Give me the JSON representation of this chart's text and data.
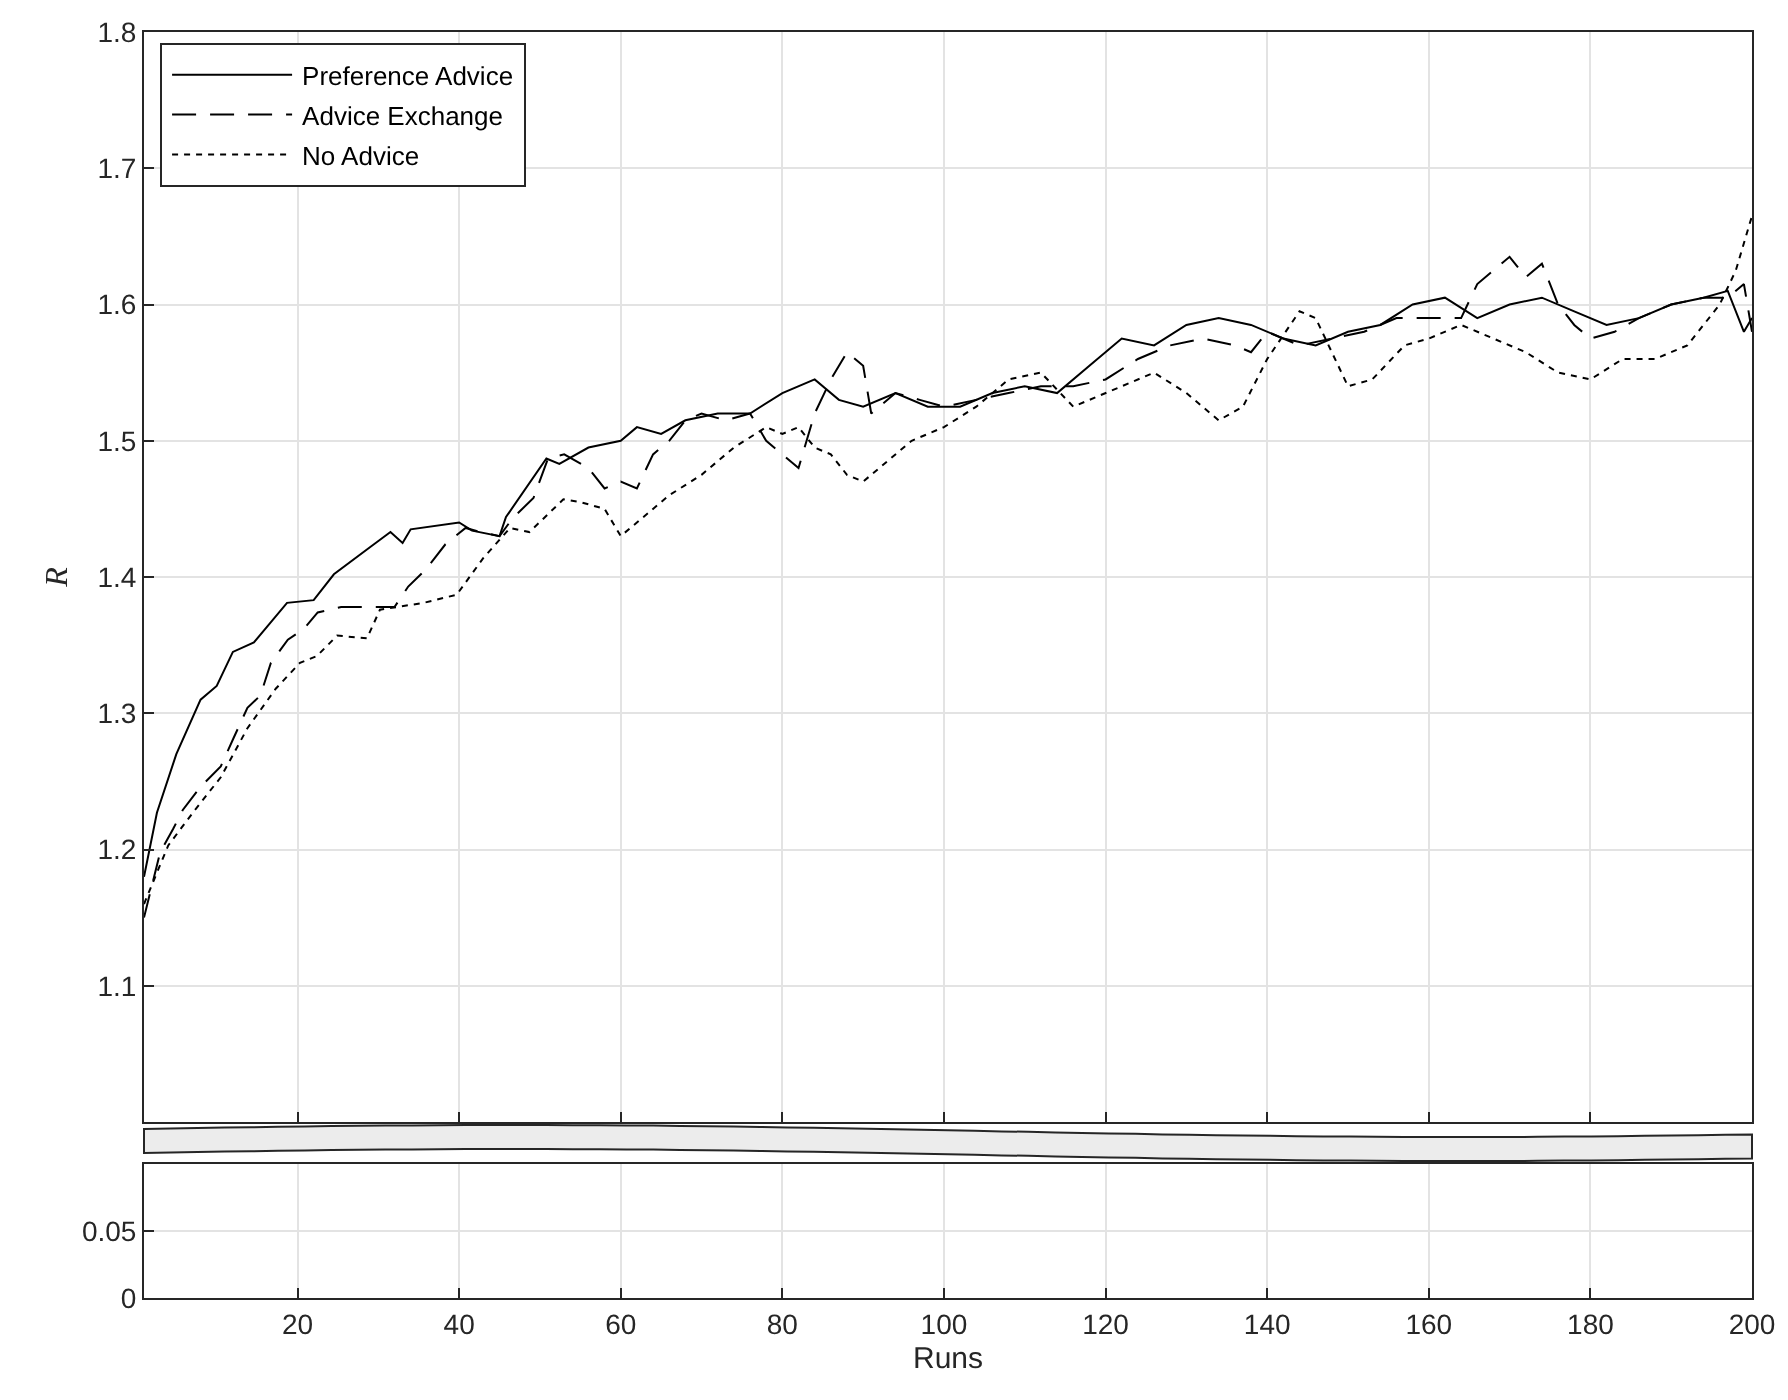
{
  "chart_data": [
    {
      "type": "line",
      "ylabel": "R",
      "xlim": [
        1,
        200
      ],
      "xticks": [
        20,
        40,
        60,
        80,
        100,
        120,
        140,
        160,
        180,
        200
      ],
      "ylim": [
        1.0,
        1.8
      ],
      "yticks": [
        1.1,
        1.2,
        1.3,
        1.4,
        1.5,
        1.6,
        1.7,
        1.8
      ],
      "grid": true,
      "legend": "top left",
      "tick_labels": "y",
      "marker": "none",
      "series": [
        {
          "name": "Preference Advice",
          "color": "#000000",
          "line_style": "solid",
          "x": [
            1,
            2.6,
            5,
            8,
            10,
            12,
            14.6,
            18.7,
            22,
            24.5,
            29,
            31.5,
            33,
            34,
            40,
            41.6,
            45,
            45.8,
            50.8,
            52.4,
            56,
            60,
            62,
            65,
            68,
            72,
            76,
            80,
            84,
            87,
            90,
            94,
            98,
            102,
            106,
            110,
            114,
            118,
            122,
            126,
            130,
            134,
            138,
            142,
            146,
            150,
            154,
            158,
            162,
            166,
            170,
            174,
            178,
            182,
            186,
            190,
            194,
            197,
            199,
            200
          ],
          "values": [
            1.18,
            1.227,
            1.27,
            1.31,
            1.32,
            1.345,
            1.352,
            1.381,
            1.383,
            1.402,
            1.422,
            1.433,
            1.425,
            1.435,
            1.44,
            1.434,
            1.43,
            1.444,
            1.487,
            1.483,
            1.495,
            1.5,
            1.51,
            1.505,
            1.515,
            1.52,
            1.52,
            1.535,
            1.545,
            1.53,
            1.525,
            1.535,
            1.525,
            1.525,
            1.535,
            1.54,
            1.535,
            1.555,
            1.575,
            1.57,
            1.585,
            1.59,
            1.585,
            1.575,
            1.57,
            1.58,
            1.585,
            1.6,
            1.605,
            1.59,
            1.6,
            1.605,
            1.595,
            1.585,
            1.59,
            1.6,
            1.605,
            1.61,
            1.58,
            1.59
          ]
        },
        {
          "name": "Advice Exchange",
          "color": "#000000",
          "line_style": "dashed",
          "x": [
            1,
            3,
            4.6,
            5.8,
            8,
            10.5,
            12.1,
            13.8,
            15.4,
            16.7,
            18.8,
            20.8,
            22.5,
            25.4,
            28.8,
            32,
            33.7,
            35.8,
            38.3,
            40.8,
            42.6,
            45,
            46.6,
            49.2,
            51,
            53,
            56,
            58,
            60,
            62,
            64,
            66,
            68,
            70,
            73,
            76,
            78,
            80,
            82,
            84,
            86,
            88,
            90,
            91,
            94,
            97,
            100,
            104,
            108,
            112,
            116,
            120,
            124,
            128,
            132,
            136,
            138,
            140,
            144,
            148,
            152,
            156,
            160,
            164,
            166,
            168,
            170,
            172,
            174,
            176,
            178,
            180,
            183,
            186,
            190,
            194,
            197,
            199,
            200
          ],
          "values": [
            1.15,
            1.198,
            1.215,
            1.229,
            1.246,
            1.261,
            1.282,
            1.304,
            1.313,
            1.337,
            1.354,
            1.362,
            1.374,
            1.378,
            1.378,
            1.378,
            1.393,
            1.405,
            1.424,
            1.436,
            1.433,
            1.43,
            1.443,
            1.458,
            1.487,
            1.49,
            1.48,
            1.465,
            1.47,
            1.465,
            1.49,
            1.5,
            1.515,
            1.52,
            1.515,
            1.52,
            1.5,
            1.49,
            1.48,
            1.52,
            1.545,
            1.565,
            1.555,
            1.52,
            1.535,
            1.53,
            1.525,
            1.53,
            1.535,
            1.54,
            1.54,
            1.545,
            1.56,
            1.57,
            1.575,
            1.57,
            1.565,
            1.58,
            1.57,
            1.575,
            1.58,
            1.59,
            1.59,
            1.59,
            1.615,
            1.625,
            1.635,
            1.62,
            1.63,
            1.6,
            1.585,
            1.575,
            1.58,
            1.59,
            1.6,
            1.605,
            1.605,
            1.615,
            1.58
          ]
        },
        {
          "name": "No Advice",
          "color": "#000000",
          "line_style": "dotted",
          "x": [
            1,
            4,
            7.3,
            10.5,
            13.8,
            17.3,
            20.3,
            22.4,
            24.9,
            28.6,
            30.2,
            35.6,
            39.7,
            43,
            46.3,
            48.7,
            52.9,
            55,
            58,
            60,
            62,
            66,
            70,
            74,
            78,
            80,
            82,
            84,
            86,
            88,
            90,
            93,
            96,
            100,
            104,
            108,
            112,
            116,
            118,
            122,
            126,
            130,
            134,
            137,
            140,
            144,
            146,
            150,
            153,
            157,
            160,
            164,
            168,
            172,
            176,
            180,
            184,
            188,
            192,
            196,
            198,
            200
          ],
          "values": [
            1.16,
            1.203,
            1.229,
            1.253,
            1.289,
            1.318,
            1.337,
            1.342,
            1.357,
            1.355,
            1.376,
            1.381,
            1.387,
            1.414,
            1.436,
            1.433,
            1.457,
            1.455,
            1.45,
            1.43,
            1.44,
            1.46,
            1.475,
            1.495,
            1.51,
            1.505,
            1.51,
            1.495,
            1.49,
            1.475,
            1.47,
            1.485,
            1.5,
            1.51,
            1.525,
            1.545,
            1.55,
            1.525,
            1.53,
            1.54,
            1.55,
            1.535,
            1.515,
            1.525,
            1.56,
            1.595,
            1.59,
            1.54,
            1.545,
            1.57,
            1.575,
            1.585,
            1.575,
            1.565,
            1.55,
            1.545,
            1.56,
            1.56,
            1.57,
            1.6,
            1.625,
            1.665
          ]
        }
      ]
    },
    {
      "type": "line",
      "xlabel": "Runs",
      "xlim": [
        1,
        200
      ],
      "xticks": [
        20,
        40,
        60,
        80,
        100,
        120,
        140,
        160,
        180,
        200
      ],
      "ylim": [
        0,
        0.1
      ],
      "yticks": [
        0,
        0.05
      ],
      "grid": true
    }
  ]
}
